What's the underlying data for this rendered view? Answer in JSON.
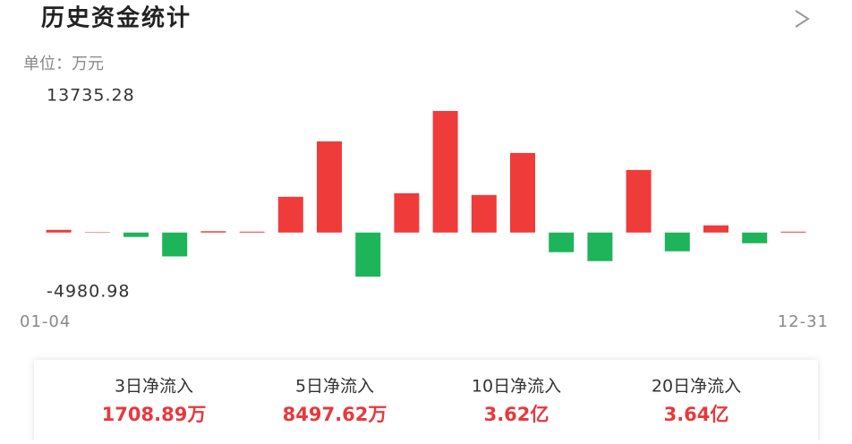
{
  "header": {
    "title": "历史资金统计"
  },
  "unit": "单位：万元",
  "chart_data": {
    "type": "bar",
    "categories": [
      "01-04",
      null,
      null,
      null,
      null,
      null,
      null,
      null,
      null,
      null,
      null,
      null,
      null,
      null,
      null,
      null,
      null,
      null,
      null,
      "12-31"
    ],
    "values": [
      300,
      50,
      -500,
      -2700,
      150,
      100,
      4040,
      10300,
      -4980.98,
      4440,
      13735.28,
      4240,
      8990,
      -2220,
      -3230,
      7070,
      -2120,
      810,
      -1210,
      100
    ],
    "positive_color": "#f03b3b",
    "negative_color": "#1db45a",
    "ylim": [
      -4980.98,
      13735.28
    ],
    "yticks": [
      13735.28,
      -4980.98
    ],
    "grid": false
  },
  "summary": [
    {
      "label": "3日净流入",
      "value": "1708.89万"
    },
    {
      "label": "5日净流入",
      "value": "8497.62万"
    },
    {
      "label": "10日净流入",
      "value": "3.62亿"
    },
    {
      "label": "20日净流入",
      "value": "3.64亿"
    }
  ]
}
